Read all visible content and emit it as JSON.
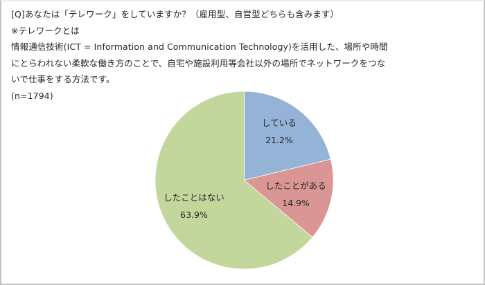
{
  "question": {
    "title": "[Q]あなたは「テレワーク」をしていますか？（雇用型、自営型どちらも含みます）",
    "definition_lines": [
      "※テレワークとは",
      "情報通信技術(ICT = Information and Communication Technology)を活用した、場所や時間",
      "にとらわれない柔軟な働き方のことで、自宅や施設利用等会社以外の場所でネットワークをつな",
      "いで仕事をする方法です。"
    ],
    "sample_size": "(n=1794)"
  },
  "chart_data": {
    "type": "pie",
    "title": "[Q]あなたは「テレワーク」をしていますか？（雇用型、自営型どちらも含みます）",
    "subtitle": "(n=1794)",
    "start_angle": "12 o'clock",
    "direction": "clockwise",
    "categories": [
      "している",
      "したことがある",
      "したことはない"
    ],
    "values": [
      21.2,
      14.9,
      63.9
    ],
    "unit": "%",
    "n": 1794,
    "colors": [
      "#95b3d7",
      "#d99694",
      "#c3d69b"
    ],
    "labels": [
      "21.2%",
      "14.9%",
      "63.9%"
    ],
    "legend": "none (data labels on slices)"
  }
}
